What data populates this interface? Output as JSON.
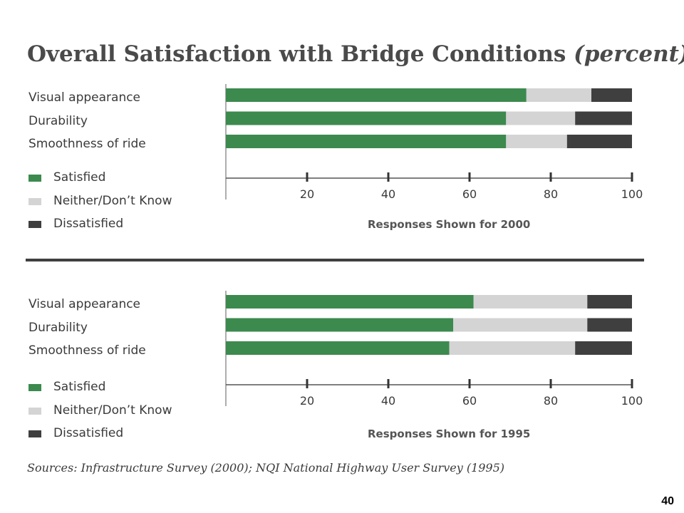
{
  "title": {
    "main": "Overall Satisfaction with Bridge Conditions",
    "emphasis": "(percent)"
  },
  "colors": {
    "satisfied": "#3c8a4e",
    "neither": "#d4d4d4",
    "dissatisfied": "#3f3f3f",
    "axis": "#555555"
  },
  "chart_data": [
    {
      "type": "bar",
      "orientation": "horizontal",
      "stacked": true,
      "caption": "Responses Shown for 2000",
      "categories": [
        "Visual appearance",
        "Durability",
        "Smoothness of ride"
      ],
      "series": [
        {
          "name": "Satisfied",
          "values": [
            74,
            69,
            69
          ]
        },
        {
          "name": "Neither/Don’t Know",
          "values": [
            16,
            17,
            15
          ]
        },
        {
          "name": "Dissatisfied",
          "values": [
            10,
            14,
            16
          ]
        }
      ],
      "xlim": [
        0,
        100
      ],
      "xticks": [
        20,
        40,
        60,
        80,
        100
      ],
      "legend_position": "bottom-left"
    },
    {
      "type": "bar",
      "orientation": "horizontal",
      "stacked": true,
      "caption": "Responses Shown for 1995",
      "categories": [
        "Visual appearance",
        "Durability",
        "Smoothness of ride"
      ],
      "series": [
        {
          "name": "Satisfied",
          "values": [
            61,
            56,
            55
          ]
        },
        {
          "name": "Neither/Don’t Know",
          "values": [
            28,
            33,
            31
          ]
        },
        {
          "name": "Dissatisfied",
          "values": [
            11,
            11,
            14
          ]
        }
      ],
      "xlim": [
        0,
        100
      ],
      "xticks": [
        20,
        40,
        60,
        80,
        100
      ],
      "legend_position": "bottom-left"
    }
  ],
  "sources": "Sources: Infrastructure Survey (2000); NQI National Highway User Survey (1995)",
  "page_number": "40"
}
